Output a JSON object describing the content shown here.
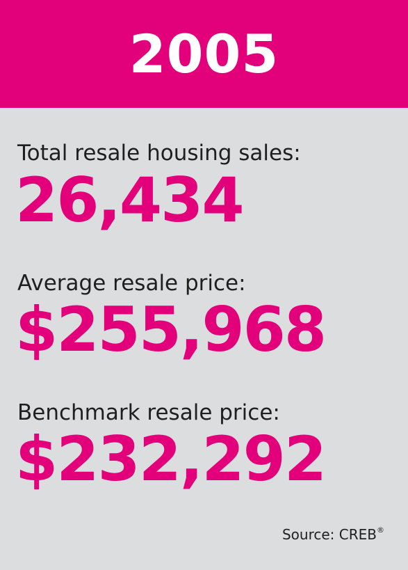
{
  "header": {
    "year": "2005"
  },
  "stats": [
    {
      "label": "Total resale housing sales:",
      "value": "26,434"
    },
    {
      "label": "Average resale price:",
      "value": "$255,968"
    },
    {
      "label": "Benchmark resale price:",
      "value": "$232,292"
    }
  ],
  "footer": {
    "source": "Source: CREB",
    "registered_mark": "®"
  },
  "colors": {
    "accent": "#e3007b",
    "background": "#dcdddf",
    "text": "#1f1f1f"
  }
}
